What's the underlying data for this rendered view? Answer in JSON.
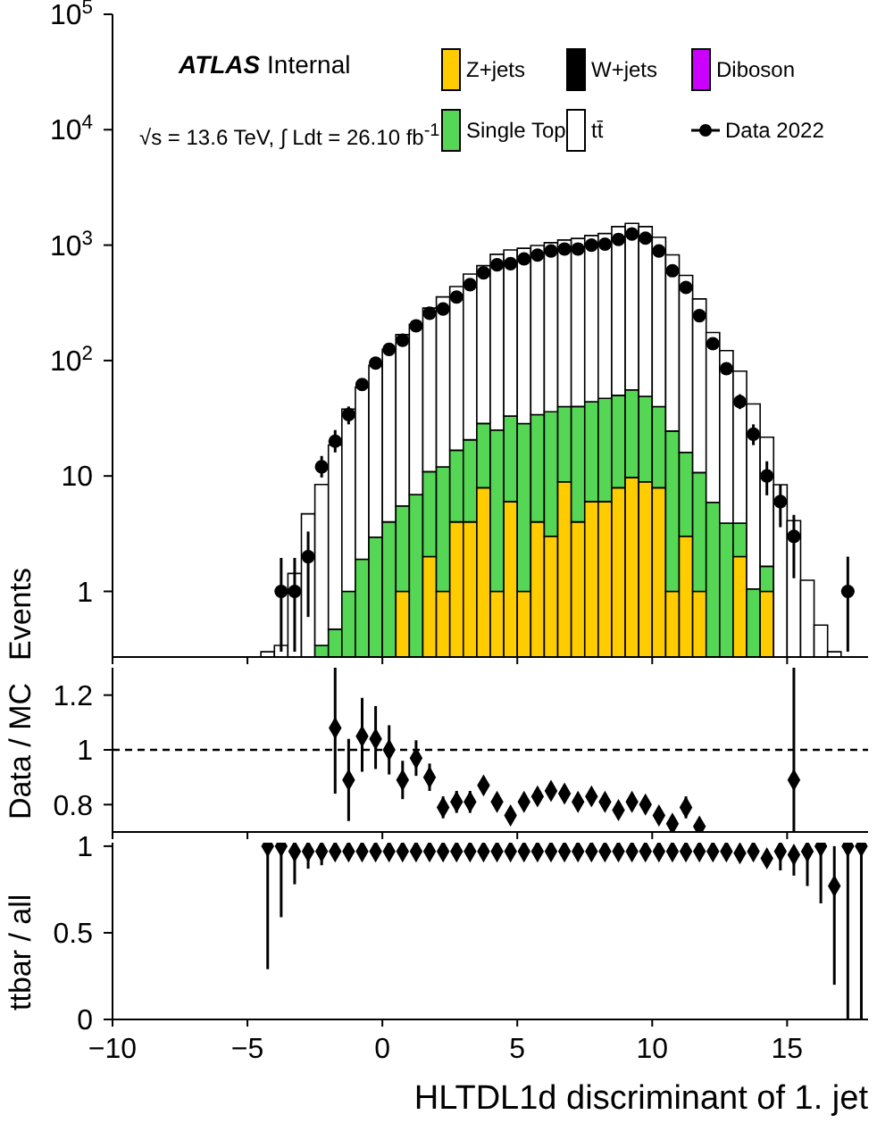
{
  "chart_data": [
    {
      "type": "bar",
      "ylabel": "Events",
      "annotations": [
        "ATLAS Internal",
        "√s = 13.6 TeV, ∫ Ldt = 26.10 fb$^{-1}$"
      ],
      "stacked": true,
      "log": "y",
      "legend": "top right",
      "tick_labels": "y",
      "xlim": [
        -10,
        18
      ],
      "xticks": [
        -10,
        -5,
        0,
        5,
        10,
        15
      ],
      "ylim": [
        0.27,
        100000
      ],
      "yticks": [
        1,
        10,
        {
          "value": 100,
          "label": "10$^{2}$"
        },
        {
          "value": 1000,
          "label": "10$^{3}$"
        },
        {
          "value": 10000,
          "label": "10$^{4}$"
        },
        {
          "value": 100000,
          "label": "10$^{5}$"
        }
      ],
      "x": [
        -4.25,
        -3.75,
        -3.25,
        -2.75,
        -2.25,
        -1.75,
        -1.25,
        -0.75,
        -0.25,
        0.25,
        0.75,
        1.25,
        1.75,
        2.25,
        2.75,
        3.25,
        3.75,
        4.25,
        4.75,
        5.25,
        5.75,
        6.25,
        6.75,
        7.25,
        7.75,
        8.25,
        8.75,
        9.25,
        9.75,
        10.25,
        10.75,
        11.25,
        11.75,
        12.25,
        12.75,
        13.25,
        13.75,
        14.25,
        14.75,
        15.25,
        15.75,
        16.25,
        16.75
      ],
      "series": [
        {
          "name": "Z+jets",
          "color": "#ffcc00",
          "values": [
            null,
            null,
            null,
            null,
            null,
            null,
            null,
            null,
            null,
            null,
            1,
            null,
            2,
            1,
            4,
            4,
            7.9,
            1,
            6,
            1,
            4,
            3,
            8.9,
            4,
            6,
            6,
            7.9,
            9.7,
            8.9,
            7.9,
            1,
            3,
            1,
            null,
            null,
            2,
            null,
            1,
            null,
            null,
            null,
            null,
            null
          ]
        },
        {
          "name": "W+jets",
          "color": "#000000",
          "values": [
            null,
            null,
            null,
            null,
            null,
            null,
            null,
            null,
            null,
            null,
            null,
            null,
            null,
            null,
            null,
            null,
            null,
            null,
            null,
            null,
            null,
            null,
            null,
            null,
            null,
            null,
            null,
            null,
            null,
            null,
            null,
            null,
            null,
            null,
            null,
            null,
            null,
            null,
            null,
            null,
            null,
            null,
            null
          ]
        },
        {
          "name": "Diboson",
          "color": "#cc00ff",
          "values": [
            null,
            null,
            null,
            null,
            null,
            null,
            null,
            null,
            null,
            null,
            null,
            null,
            null,
            null,
            null,
            null,
            null,
            null,
            null,
            null,
            null,
            null,
            null,
            null,
            null,
            null,
            null,
            null,
            null,
            null,
            null,
            null,
            null,
            null,
            null,
            null,
            null,
            null,
            null,
            null,
            null,
            null,
            null
          ]
        },
        {
          "name": "Single Top",
          "color": "#55d655",
          "values": [
            null,
            null,
            null,
            null,
            0.34,
            0.47,
            1,
            1.9,
            2.95,
            4,
            4.5,
            6.9,
            8.9,
            11,
            12.7,
            16.6,
            20.6,
            24,
            27,
            27.4,
            30,
            33,
            31,
            36,
            38,
            41,
            42,
            46,
            40,
            32,
            23.5,
            13,
            9.7,
            5.9,
            3.9,
            1.9,
            1.05,
            0.65,
            null,
            null,
            null,
            null,
            null
          ]
        },
        {
          "name": "tt̄",
          "color": "#ffffff",
          "values": [
            0.3,
            0.34,
            1.43,
            4.7,
            8.1,
            18.1,
            37,
            57,
            88,
            121,
            162,
            199,
            274,
            344,
            421,
            541,
            635,
            808,
            875,
            910,
            960,
            1014,
            1068,
            1102,
            1167,
            1212,
            1395,
            1487,
            1396,
            1131,
            798,
            531,
            331,
            169,
            118,
            77,
            41,
            20,
            8.4,
            4.1,
            1.25,
            0.51,
            0.3
          ]
        },
        {
          "name": "Data 2022",
          "type": "scatter",
          "color": "#000000",
          "marker": "circle",
          "x": [
            -3.75,
            -3.25,
            -2.75,
            -2.25,
            -1.75,
            -1.25,
            -0.75,
            -0.25,
            0.25,
            0.75,
            1.25,
            1.75,
            2.25,
            2.75,
            3.25,
            3.75,
            4.25,
            4.75,
            5.25,
            5.75,
            6.25,
            6.75,
            7.25,
            7.75,
            8.25,
            8.75,
            9.25,
            9.75,
            10.25,
            10.75,
            11.25,
            11.75,
            12.25,
            12.75,
            13.25,
            13.75,
            14.25,
            14.75,
            15.25,
            17.25
          ],
          "values": [
            1,
            1,
            2,
            12,
            20,
            34,
            62,
            95,
            125,
            150,
            200,
            257,
            280,
            355,
            455,
            575,
            675,
            690,
            760,
            820,
            890,
            925,
            925,
            1000,
            1020,
            1120,
            1250,
            1150,
            890,
            600,
            430,
            245,
            140,
            85,
            44,
            23,
            10,
            6,
            3,
            1
          ],
          "errors": [
            [
              0.3,
              1.95
            ],
            [
              0.3,
              1.95
            ],
            [
              0.6,
              3.3
            ],
            [
              9.7,
              14.9
            ],
            [
              16,
              25
            ],
            [
              28,
              40
            ],
            null,
            null,
            null,
            null,
            null,
            null,
            null,
            null,
            null,
            null,
            null,
            null,
            null,
            null,
            null,
            null,
            null,
            null,
            null,
            null,
            null,
            null,
            null,
            null,
            null,
            null,
            null,
            null,
            [
              38,
              51
            ],
            [
              18.5,
              28
            ],
            [
              6.8,
              13.4
            ],
            2.4,
            [
              1.3,
              4.6
            ],
            [
              0.3,
              2
            ]
          ]
        }
      ]
    },
    {
      "type": "scatter",
      "ylabel": "Data / MC",
      "tick_labels": "y",
      "marker": "diamond",
      "color": "#000000",
      "xlim": [
        -10,
        18
      ],
      "xticks": [
        -10,
        -5,
        0,
        5,
        10,
        15
      ],
      "ylim": [
        0.7,
        1.3
      ],
      "yticks": [
        0.8,
        1,
        1.2
      ],
      "ref_lines": [
        {
          "axis": "y",
          "value": 1,
          "line_style": "dashed",
          "color": "#000000"
        }
      ],
      "x": [
        -1.75,
        -1.25,
        -0.75,
        -0.25,
        0.25,
        0.75,
        1.25,
        1.75,
        2.25,
        2.75,
        3.25,
        3.75,
        4.25,
        4.75,
        5.25,
        5.75,
        6.25,
        6.75,
        7.25,
        7.75,
        8.25,
        8.75,
        9.25,
        9.75,
        10.25,
        10.75,
        11.25,
        11.75,
        15.25
      ],
      "values": [
        1.08,
        0.89,
        1.05,
        1.04,
        1,
        0.89,
        0.97,
        0.9,
        0.79,
        0.81,
        0.81,
        0.87,
        0.81,
        0.76,
        0.81,
        0.83,
        0.85,
        0.84,
        0.81,
        0.83,
        0.81,
        0.78,
        0.81,
        0.8,
        0.76,
        0.73,
        0.79,
        0.72,
        0.89
      ],
      "errors": [
        [
          0.84,
          1.3
        ],
        0.15,
        [
          0.92,
          1.19
        ],
        [
          0.93,
          1.16
        ],
        0.09,
        0.07,
        0.065,
        0.05,
        0.04,
        0.04,
        0.04,
        null,
        null,
        null,
        null,
        null,
        null,
        null,
        null,
        null,
        null,
        null,
        null,
        null,
        null,
        null,
        0.04,
        null,
        [
          0.7,
          1.3
        ]
      ]
    },
    {
      "type": "scatter",
      "ylabel": "ttbar / all",
      "xlabel": "HLTDL1d discriminant of 1. jet",
      "marker": "diamond",
      "color": "#000000",
      "xlim": [
        -10,
        18
      ],
      "xticks": [
        {
          "value": -10,
          "label": "−10"
        },
        {
          "value": -5,
          "label": "−5"
        },
        0,
        5,
        10,
        15
      ],
      "ylim": [
        0,
        1.02
      ],
      "yticks": [
        0,
        0.5,
        1
      ],
      "x": [
        -4.25,
        -3.75,
        -3.25,
        -2.75,
        -2.25,
        -1.75,
        -1.25,
        -0.75,
        -0.25,
        0.25,
        0.75,
        1.25,
        1.75,
        2.25,
        2.75,
        3.25,
        3.75,
        4.25,
        4.75,
        5.25,
        5.75,
        6.25,
        6.75,
        7.25,
        7.75,
        8.25,
        8.75,
        9.25,
        9.75,
        10.25,
        10.75,
        11.25,
        11.75,
        12.25,
        12.75,
        13.25,
        13.75,
        14.25,
        14.75,
        15.25,
        15.75,
        16.25,
        16.75,
        17.25,
        17.75
      ],
      "values": [
        1,
        1,
        0.97,
        0.97,
        0.97,
        0.97,
        0.97,
        0.97,
        0.97,
        0.97,
        0.97,
        0.97,
        0.97,
        0.97,
        0.97,
        0.97,
        0.97,
        0.97,
        0.97,
        0.97,
        0.97,
        0.97,
        0.97,
        0.97,
        0.97,
        0.97,
        0.97,
        0.97,
        0.97,
        0.97,
        0.97,
        0.97,
        0.97,
        0.97,
        0.97,
        0.96,
        0.97,
        0.93,
        0.97,
        0.95,
        0.97,
        1,
        0.77,
        1,
        1
      ],
      "errors": [
        [
          0.29,
          1
        ],
        [
          0.59,
          1
        ],
        [
          0.78,
          1
        ],
        [
          0.87,
          1
        ],
        [
          0.89,
          1
        ],
        null,
        null,
        null,
        null,
        null,
        null,
        null,
        null,
        null,
        null,
        null,
        null,
        null,
        null,
        null,
        null,
        null,
        null,
        null,
        null,
        null,
        null,
        null,
        null,
        null,
        null,
        null,
        null,
        null,
        null,
        null,
        null,
        0.04,
        [
          0.86,
          1
        ],
        [
          0.83,
          1
        ],
        [
          0.77,
          1
        ],
        [
          0.67,
          1
        ],
        [
          0.2,
          1
        ],
        [
          0,
          1
        ],
        [
          0,
          1
        ]
      ]
    }
  ]
}
